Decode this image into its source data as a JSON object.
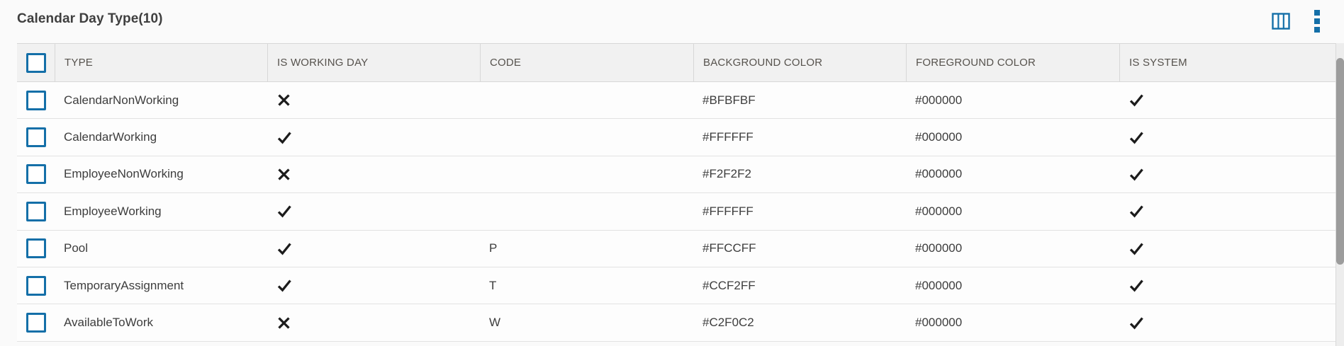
{
  "theme": {
    "accent": "#146fa8",
    "mark_color": "#1c1c1c",
    "header_bg": "#f1f1f1",
    "scrollbar_thumb": "#9c9c9c"
  },
  "header": {
    "title": "Calendar Day Type(10)",
    "total_count": 10,
    "icons": [
      {
        "name": "column-chooser-icon"
      },
      {
        "name": "vertical-ellipsis-icon"
      }
    ]
  },
  "grid": {
    "columns": [
      {
        "key": "type",
        "label": "TYPE",
        "type": "text"
      },
      {
        "key": "is_working_day",
        "label": "IS WORKING DAY",
        "type": "boolean"
      },
      {
        "key": "code",
        "label": "CODE",
        "type": "text"
      },
      {
        "key": "background_color",
        "label": "BACKGROUND COLOR",
        "type": "text"
      },
      {
        "key": "foreground_color",
        "label": "FOREGROUND COLOR",
        "type": "text"
      },
      {
        "key": "is_system",
        "label": "IS SYSTEM",
        "type": "boolean"
      }
    ],
    "rows": [
      {
        "type": "CalendarNonWorking",
        "is_working_day": false,
        "code": "",
        "background_color": "#BFBFBF",
        "foreground_color": "#000000",
        "is_system": true
      },
      {
        "type": "CalendarWorking",
        "is_working_day": true,
        "code": "",
        "background_color": "#FFFFFF",
        "foreground_color": "#000000",
        "is_system": true
      },
      {
        "type": "EmployeeNonWorking",
        "is_working_day": false,
        "code": "",
        "background_color": "#F2F2F2",
        "foreground_color": "#000000",
        "is_system": true
      },
      {
        "type": "EmployeeWorking",
        "is_working_day": true,
        "code": "",
        "background_color": "#FFFFFF",
        "foreground_color": "#000000",
        "is_system": true
      },
      {
        "type": "Pool",
        "is_working_day": true,
        "code": "P",
        "background_color": "#FFCCFF",
        "foreground_color": "#000000",
        "is_system": true
      },
      {
        "type": "TemporaryAssignment",
        "is_working_day": true,
        "code": "T",
        "background_color": "#CCF2FF",
        "foreground_color": "#000000",
        "is_system": true
      },
      {
        "type": "AvailableToWork",
        "is_working_day": false,
        "code": "W",
        "background_color": "#C2F0C2",
        "foreground_color": "#000000",
        "is_system": true
      }
    ]
  }
}
